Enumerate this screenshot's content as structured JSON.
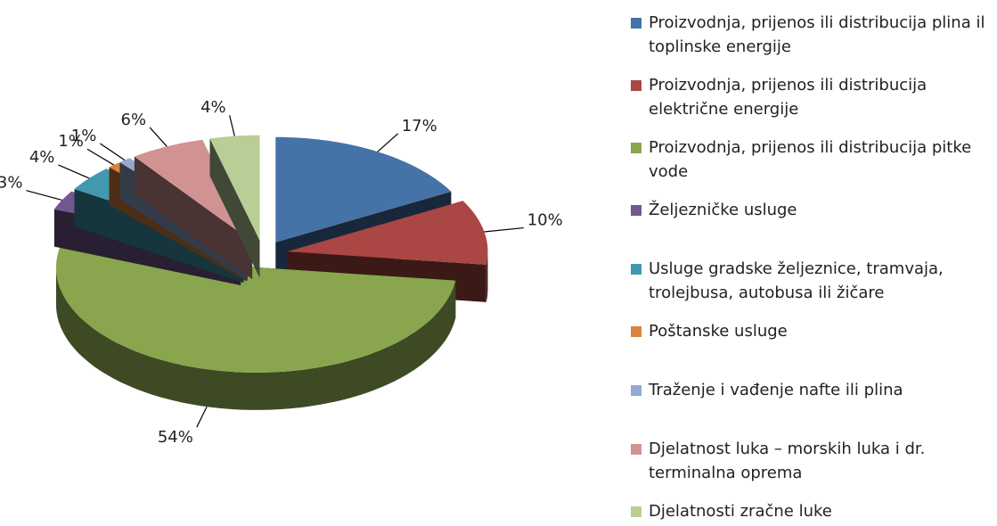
{
  "chart_data": {
    "type": "pie",
    "categories": [
      "Proizvodnja, prijenos ili distribucija plina il toplinske energije",
      "Proizvodnja, prijenos ili distribucija električne energije",
      "Proizvodnja, prijenos ili distribucija pitke vode",
      "Željezničke usluge",
      "Usluge gradske željeznice, tramvaja, trolejbusa, autobusa ili žičare",
      "Poštanske usluge",
      "Traženje i vađenje nafte ili plina",
      "Djelatnost luka – morskih luka i dr. terminalna oprema",
      "Djelatnosti zračne luke"
    ],
    "values": [
      17,
      10,
      54,
      3,
      4,
      1,
      1,
      6,
      4
    ],
    "value_labels": [
      "17%",
      "10%",
      "54%",
      "3%",
      "4%",
      "1%",
      "1%",
      "6%",
      "4%"
    ],
    "colors": [
      "#4572a7",
      "#aa4643",
      "#89a54e",
      "#71588f",
      "#4198af",
      "#db843d",
      "#93a9cf",
      "#d19392",
      "#b9cd96"
    ],
    "legend": "right"
  }
}
